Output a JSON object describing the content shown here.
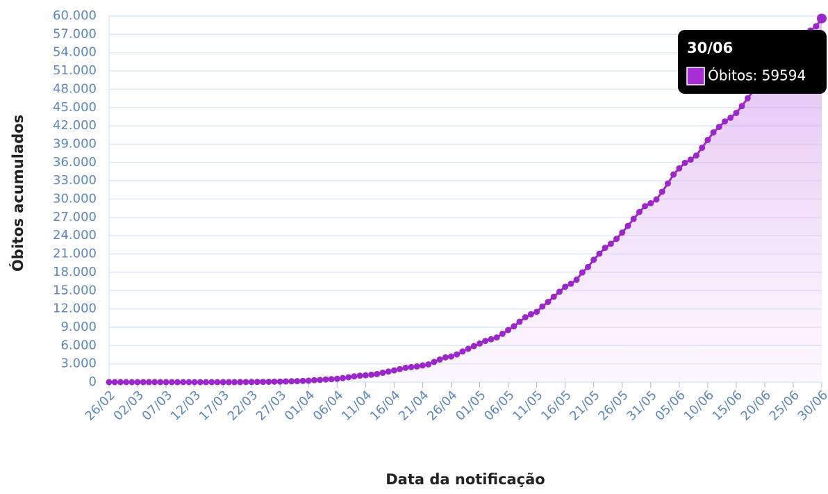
{
  "chart_data": {
    "type": "line",
    "x_label": "Data da notificação",
    "y_label": "Óbitos acumulados",
    "categories": [
      "26/02",
      null,
      null,
      null,
      null,
      "02/03",
      null,
      null,
      null,
      null,
      "07/03",
      null,
      null,
      null,
      null,
      "12/03",
      null,
      null,
      null,
      null,
      "17/03",
      null,
      null,
      null,
      null,
      "22/03",
      null,
      null,
      null,
      null,
      "27/03",
      null,
      null,
      null,
      null,
      "01/04",
      null,
      null,
      null,
      null,
      "06/04",
      null,
      null,
      null,
      null,
      "11/04",
      null,
      null,
      null,
      null,
      "16/04",
      null,
      null,
      null,
      null,
      "21/04",
      null,
      null,
      null,
      null,
      "26/04",
      null,
      null,
      null,
      null,
      "01/05",
      null,
      null,
      null,
      null,
      "06/05",
      null,
      null,
      null,
      null,
      "11/05",
      null,
      null,
      null,
      null,
      "16/05",
      null,
      null,
      null,
      null,
      "21/05",
      null,
      null,
      null,
      null,
      "26/05",
      null,
      null,
      null,
      null,
      "31/05",
      null,
      null,
      null,
      null,
      "05/06",
      null,
      null,
      null,
      null,
      "10/06",
      null,
      null,
      null,
      null,
      "15/06",
      null,
      null,
      null,
      null,
      "20/06",
      null,
      null,
      null,
      null,
      "25/06",
      null,
      null,
      null,
      null,
      "30/06"
    ],
    "series": [
      {
        "name": "Óbitos",
        "color": "#9b27c9",
        "values": [
          0,
          0,
          0,
          0,
          0,
          0,
          0,
          0,
          0,
          0,
          0,
          0,
          0,
          0,
          0,
          0,
          0,
          0,
          0,
          0,
          1,
          4,
          7,
          11,
          18,
          25,
          34,
          46,
          57,
          77,
          92,
          111,
          136,
          159,
          201,
          240,
          324,
          359,
          445,
          486,
          553,
          667,
          800,
          941,
          1056,
          1124,
          1223,
          1328,
          1532,
          1736,
          1924,
          2141,
          2347,
          2462,
          2575,
          2741,
          2906,
          3313,
          3704,
          4057,
          4205,
          4543,
          5017,
          5466,
          5901,
          6329,
          6750,
          7025,
          7321,
          7921,
          8536,
          9146,
          9897,
          10627,
          11123,
          11519,
          12400,
          13149,
          13993,
          14817,
          15633,
          16118,
          16792,
          17971,
          18859,
          20047,
          21048,
          22013,
          22666,
          23473,
          24512,
          25598,
          26754,
          27878,
          28834,
          29314,
          29937,
          31199,
          32548,
          34021,
          35026,
          35930,
          36455,
          37134,
          38406,
          39680,
          40919,
          41828,
          42720,
          43332,
          44118,
          45241,
          46510,
          47748,
          48954,
          49976,
          50617,
          51271,
          52645,
          53830,
          54971,
          55961,
          57070,
          57622,
          58314,
          59594
        ]
      }
    ],
    "ylim": [
      0,
      60000
    ],
    "yticks": [
      0,
      {
        "value": 3000,
        "label": "3.000"
      },
      {
        "value": 6000,
        "label": "6.000"
      },
      {
        "value": 9000,
        "label": "9.000"
      },
      {
        "value": 12000,
        "label": "12.000"
      },
      {
        "value": 15000,
        "label": "15.000"
      },
      {
        "value": 18000,
        "label": "18.000"
      },
      {
        "value": 21000,
        "label": "21.000"
      },
      {
        "value": 24000,
        "label": "24.000"
      },
      {
        "value": 27000,
        "label": "27.000"
      },
      {
        "value": 30000,
        "label": "30.000"
      },
      {
        "value": 33000,
        "label": "33.000"
      },
      {
        "value": 36000,
        "label": "36.000"
      },
      {
        "value": 39000,
        "label": "39.000"
      },
      {
        "value": 42000,
        "label": "42.000"
      },
      {
        "value": 45000,
        "label": "45.000"
      },
      {
        "value": 48000,
        "label": "48.000"
      },
      {
        "value": 51000,
        "label": "51.000"
      },
      {
        "value": 54000,
        "label": "54.000"
      },
      {
        "value": 57000,
        "label": "57.000"
      },
      {
        "value": 60000,
        "label": "60.000"
      }
    ],
    "grid": true,
    "tooltip": {
      "title": "30/06",
      "text": "Óbitos: 59594"
    }
  }
}
